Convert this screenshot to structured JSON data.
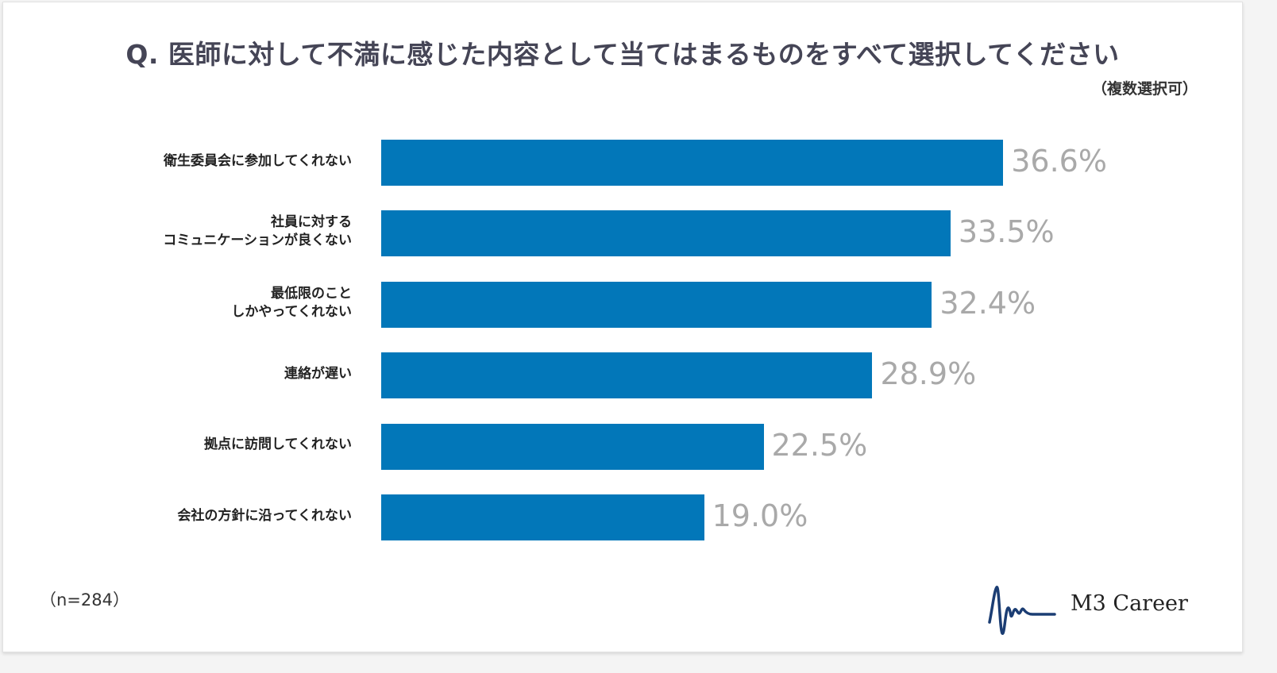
{
  "chart_data": {
    "type": "bar",
    "orientation": "horizontal",
    "title": "Q. 医師に対して不満に感じた内容として当てはまるものをすべて選択してください",
    "subtitle": "（複数選択可）",
    "categories": [
      [
        "衛生委員会に参加してくれない"
      ],
      [
        "社員に対する",
        "コミュニケーションが良くない"
      ],
      [
        "最低限のこと",
        "しかやってくれない"
      ],
      [
        "連絡が遅い"
      ],
      [
        "拠点に訪問してくれない"
      ],
      [
        "会社の方針に沿ってくれない"
      ]
    ],
    "values": [
      36.6,
      33.5,
      32.4,
      28.9,
      22.5,
      19.0
    ],
    "value_labels": [
      "36.6%",
      "33.5%",
      "32.4%",
      "28.9%",
      "22.5%",
      "19.0%"
    ],
    "unit": "%",
    "bar_color": "#0277b9",
    "label_color": "#a9a9a9",
    "grid": false,
    "note": "（n=284）"
  },
  "logo": {
    "text": "M3 Career",
    "color": "#1b3d73"
  }
}
